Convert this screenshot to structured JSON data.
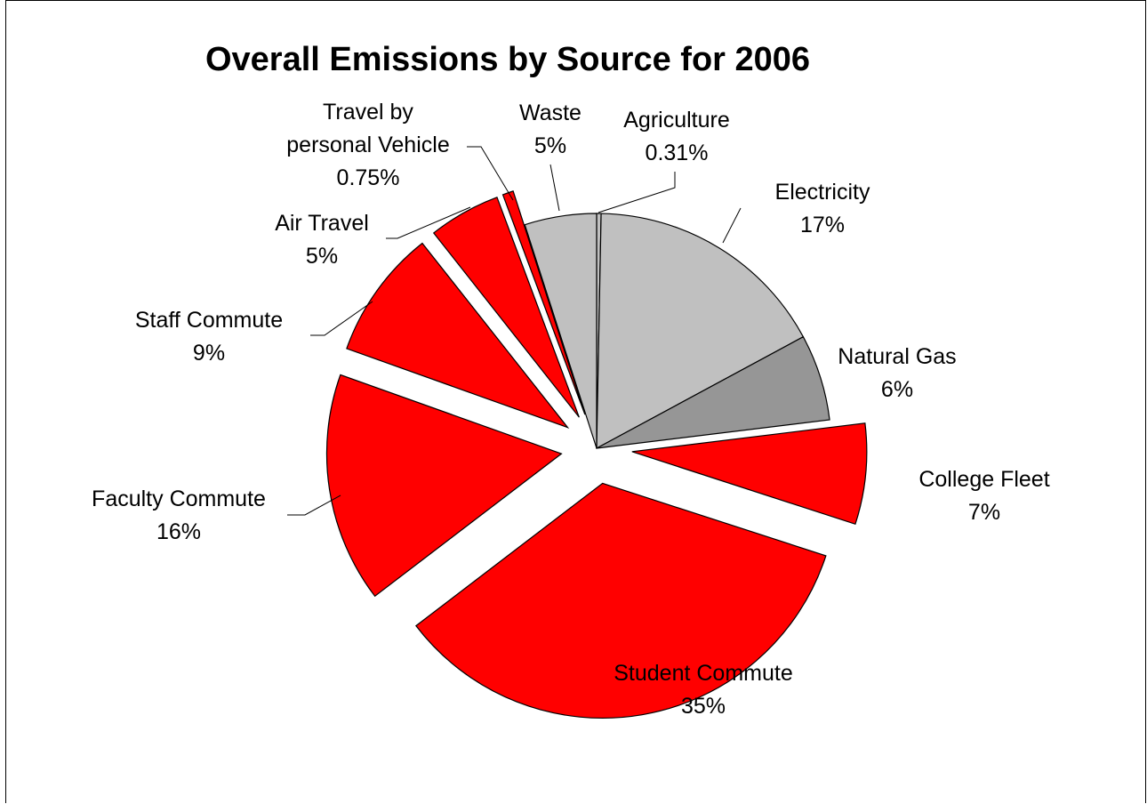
{
  "chart_data": {
    "type": "pie",
    "title": "Overall Emissions by Source for 2006",
    "slices": [
      {
        "name": "Agriculture",
        "value": 0.31,
        "label": "0.31%",
        "color": "#c0c0c0",
        "exploded": false
      },
      {
        "name": "Electricity",
        "value": 17,
        "label": "17%",
        "color": "#c0c0c0",
        "exploded": false
      },
      {
        "name": "Natural Gas",
        "value": 6,
        "label": "6%",
        "color": "#969696",
        "exploded": false
      },
      {
        "name": "College Fleet",
        "value": 7,
        "label": "7%",
        "color": "#ff0000",
        "exploded": true
      },
      {
        "name": "Student Commute",
        "value": 35,
        "label": "35%",
        "color": "#ff0000",
        "exploded": true
      },
      {
        "name": "Faculty Commute",
        "value": 16,
        "label": "16%",
        "color": "#ff0000",
        "exploded": true
      },
      {
        "name": "Staff Commute",
        "value": 9,
        "label": "9%",
        "color": "#ff0000",
        "exploded": true
      },
      {
        "name": "Air Travel",
        "value": 5,
        "label": "5%",
        "color": "#ff0000",
        "exploded": true
      },
      {
        "name": "Travel by personal Vehicle",
        "value": 0.75,
        "label": "0.75%",
        "color": "#ff0000",
        "exploded": true
      },
      {
        "name": "Waste",
        "value": 5,
        "label": "5%",
        "color": "#c0c0c0",
        "exploded": false
      }
    ],
    "label_lines": [
      [
        "Agriculture",
        "0.31%"
      ],
      [
        "Electricity",
        "17%"
      ],
      [
        "Natural Gas",
        "6%"
      ],
      [
        "College Fleet",
        "7%"
      ],
      [
        "Student Commute",
        "35%"
      ],
      [
        "Faculty Commute",
        "16%"
      ],
      [
        "Staff Commute",
        "9%"
      ],
      [
        "Air Travel",
        "5%"
      ],
      [
        "Travel by",
        "personal Vehicle",
        "0.75%"
      ],
      [
        "Waste",
        "5%"
      ]
    ]
  }
}
